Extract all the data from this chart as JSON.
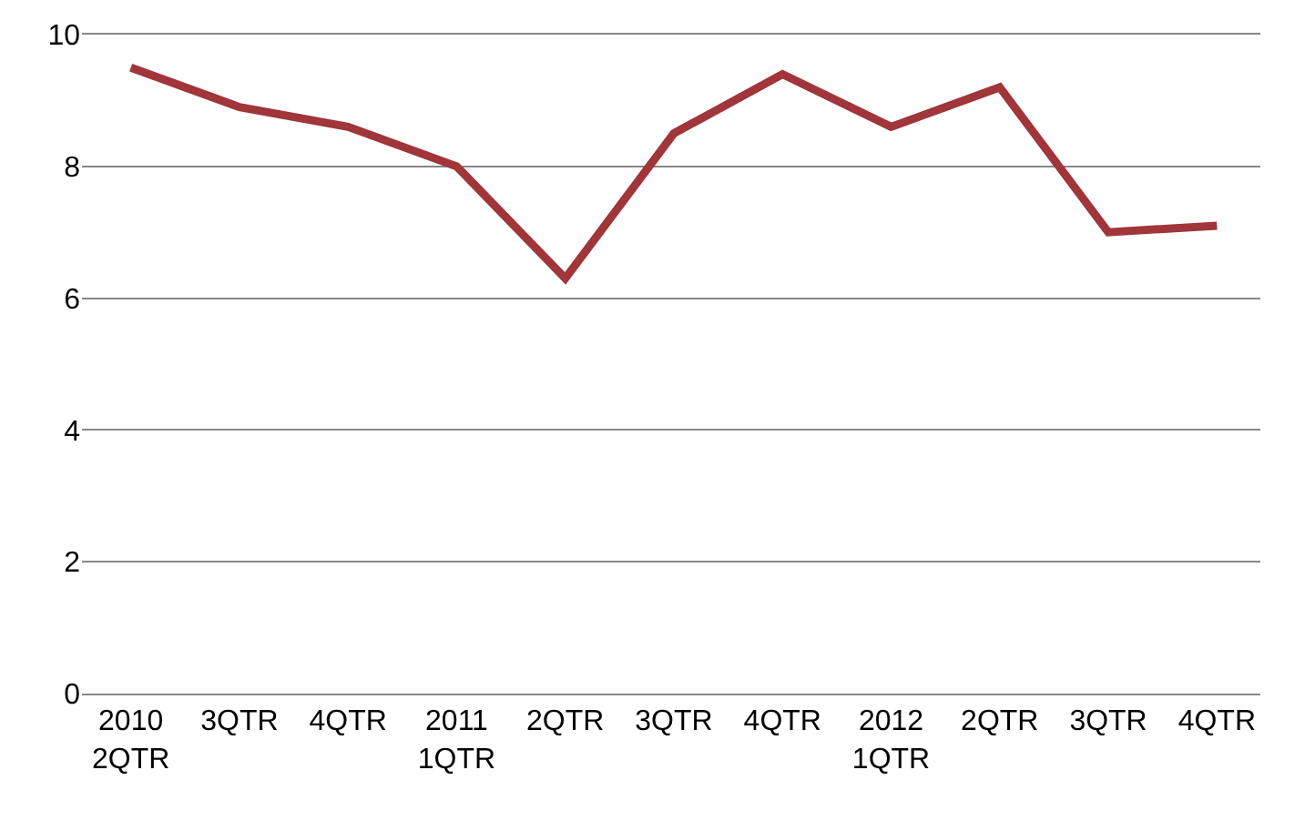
{
  "chart_data": {
    "type": "line",
    "categories": [
      "2010\n2QTR",
      "3QTR",
      "4QTR",
      "2011\n1QTR",
      "2QTR",
      "3QTR",
      "4QTR",
      "2012\n1QTR",
      "2QTR",
      "3QTR",
      "4QTR"
    ],
    "series": [
      {
        "color": "#a0353a",
        "values": [
          9.5,
          8.9,
          8.6,
          8.0,
          6.3,
          8.5,
          9.4,
          8.6,
          9.2,
          7.0,
          7.1
        ]
      }
    ],
    "ylim": [
      0,
      10
    ],
    "yticks": [
      0,
      2,
      4,
      6,
      8,
      10
    ],
    "grid": "y",
    "marker": "none",
    "line_style": "solid"
  }
}
